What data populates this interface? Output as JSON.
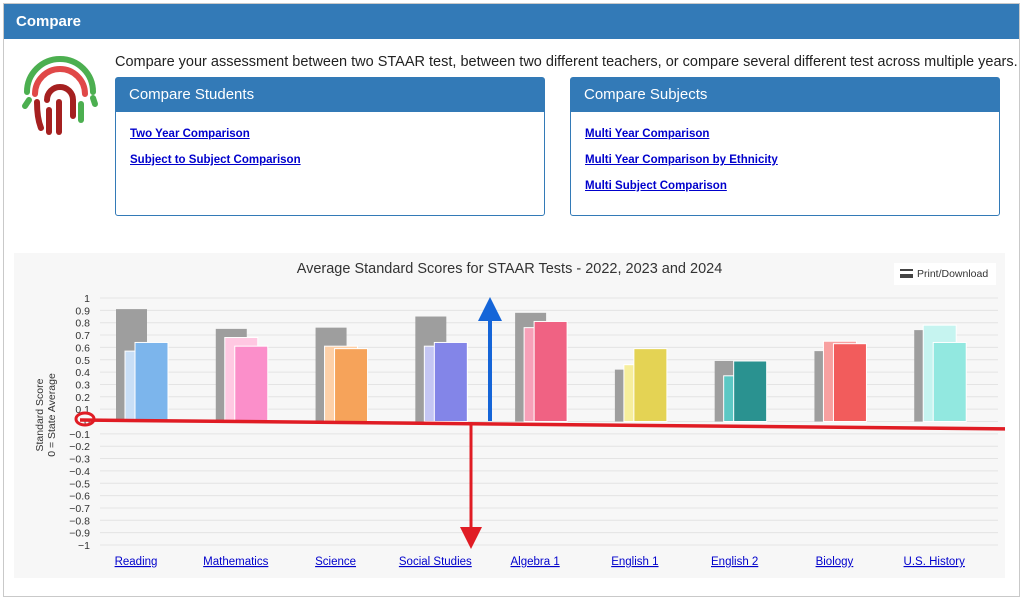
{
  "header": {
    "title": "Compare"
  },
  "intro": {
    "text": "Compare your assessment between two STAAR test, between two different teachers, or compare several different test across multiple years."
  },
  "compare_students": {
    "title": "Compare Students",
    "links": [
      "Two Year Comparison",
      "Subject to Subject Comparison"
    ]
  },
  "compare_subjects": {
    "title": "Compare Subjects",
    "links": [
      "Multi Year Comparison",
      "Multi Year Comparison by Ethnicity",
      "Multi Subject Comparison"
    ]
  },
  "print_button": {
    "label": "Print/Download"
  },
  "colors": {
    "header_blue": "#337ab7",
    "gray_bar": "#9e9e9e",
    "arrow_red": "#e01c24",
    "arrow_blue": "#1565d8"
  },
  "chart_data": {
    "type": "bar",
    "title": "Average Standard Scores for STAAR Tests - 2022, 2023 and 2024",
    "ylabel": [
      "Standard Score",
      "0 = State Average"
    ],
    "ylim": [
      -1,
      1
    ],
    "yticks": [
      "1",
      "0.9",
      "0.8",
      "0.7",
      "0.6",
      "0.5",
      "0.4",
      "0.3",
      "0.2",
      "0.1",
      "0",
      "−0.1",
      "−0.2",
      "−0.3",
      "−0.4",
      "−0.5",
      "−0.6",
      "−0.7",
      "−0.8",
      "−0.9",
      "−1"
    ],
    "categories": [
      "Reading",
      "Mathematics",
      "Science",
      "Social Studies",
      "Algebra 1",
      "English 1",
      "English 2",
      "Biology",
      "U.S. History"
    ],
    "colors_light": [
      "#c8def6",
      "#ffc8e2",
      "#fdd0a8",
      "#c4c6f4",
      "#f7a0b8",
      "#f6ee9c",
      "#5cc8c4",
      "#f8a0a0",
      "#c6f4f0"
    ],
    "colors_dark": [
      "#7cb5ec",
      "#fb8fca",
      "#f6a35a",
      "#8385e8",
      "#f06283",
      "#e4d354",
      "#2a9290",
      "#f25c5c",
      "#92e8e0"
    ],
    "series": [
      {
        "values": [
          0.91,
          0.75,
          0.76,
          0.85,
          0.88,
          0.42,
          0.49,
          0.57,
          0.74
        ]
      },
      {
        "values": [
          0.57,
          0.68,
          0.61,
          0.61,
          0.76,
          0.46,
          0.37,
          0.65,
          0.78
        ]
      },
      {
        "values": [
          0.64,
          0.61,
          0.59,
          0.64,
          0.81,
          0.59,
          0.49,
          0.63,
          0.64
        ]
      }
    ]
  }
}
